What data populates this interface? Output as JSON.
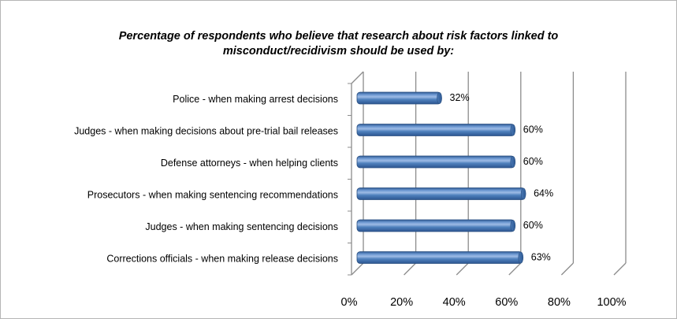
{
  "chart_data": {
    "type": "bar",
    "orientation": "horizontal",
    "title_lines": [
      "Percentage of respondents who believe that research about risk factors linked to",
      "misconduct/recidivism should be used by:"
    ],
    "categories": [
      "Police - when making arrest decisions",
      "Judges - when making decisions about pre-trial bail releases",
      "Defense attorneys - when helping clients",
      "Prosecutors - when making sentencing recommendations",
      "Judges - when making sentencing decisions",
      "Corrections officials - when making release decisions"
    ],
    "values": [
      32,
      60,
      60,
      64,
      60,
      63
    ],
    "value_labels": [
      "32%",
      "60%",
      "60%",
      "64%",
      "60%",
      "63%"
    ],
    "xlim": [
      0,
      100
    ],
    "x_ticks": [
      0,
      20,
      40,
      60,
      80,
      100
    ],
    "x_tick_labels": [
      "0%",
      "20%",
      "40%",
      "60%",
      "80%",
      "100%"
    ],
    "grid": true,
    "style": "3d-cylinder",
    "colors": {
      "bar_fill": "#4f81bd",
      "bar_light": "#9dbbe5",
      "bar_dark": "#2f5b95",
      "bar_outline": "#2a4f80",
      "gridline": "#8c8c8c",
      "text": "#000000"
    }
  }
}
